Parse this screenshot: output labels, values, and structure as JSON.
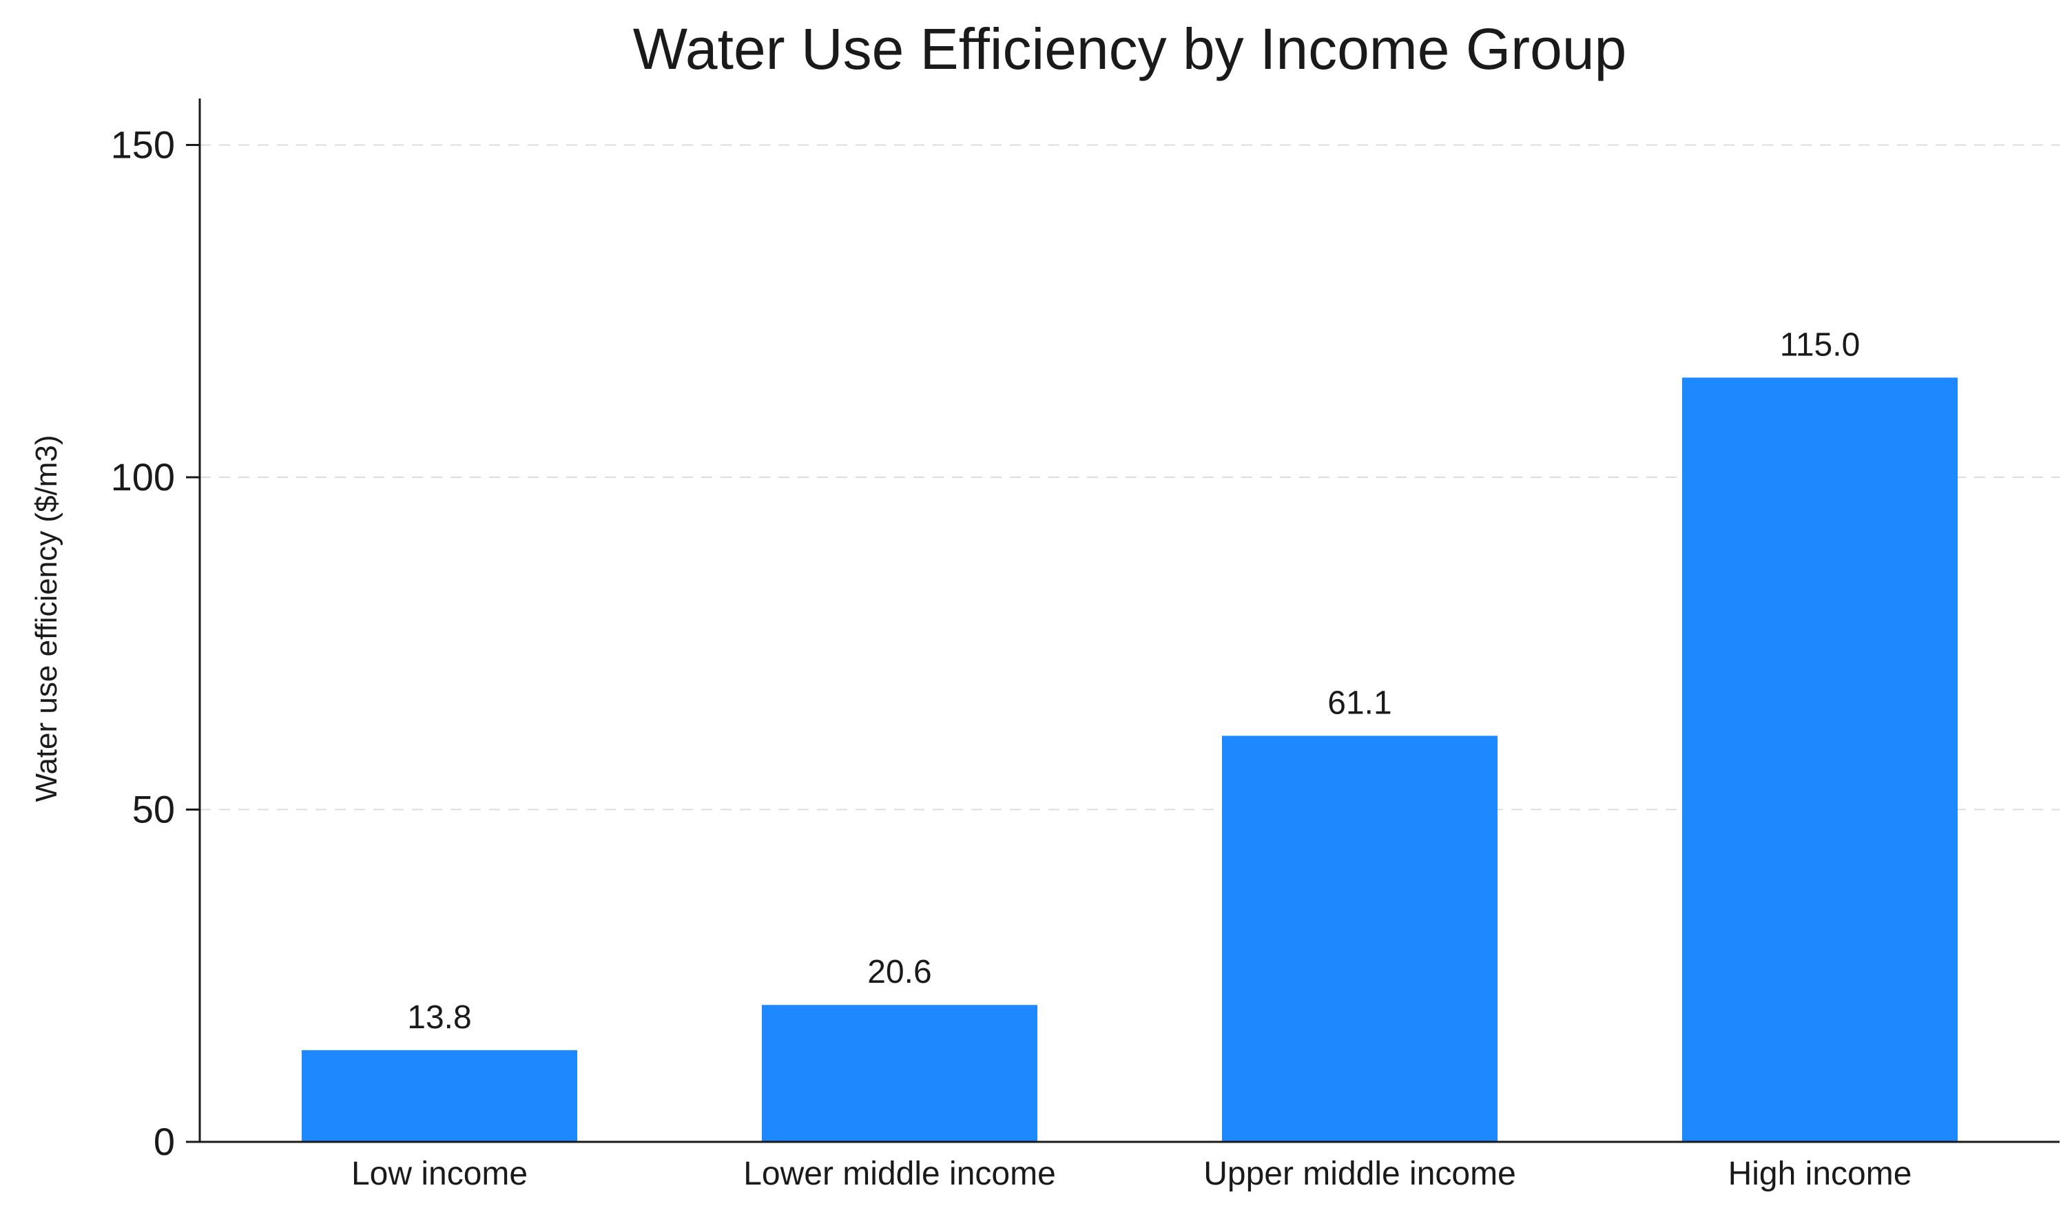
{
  "chart_data": {
    "type": "bar",
    "title": "Water Use Efficiency by Income Group",
    "xlabel": "",
    "ylabel": "Water use efficiency ($/m3)",
    "categories": [
      "Low income",
      "Lower middle income",
      "Upper middle income",
      "High income"
    ],
    "values": [
      13.8,
      20.6,
      61.1,
      115.0
    ],
    "value_labels": [
      "13.8",
      "20.6",
      "61.1",
      "115.0"
    ],
    "ylim": [
      0,
      157
    ],
    "yticks": [
      0,
      50,
      100,
      150
    ],
    "grid": true,
    "legend": "none",
    "bar_color": "#1e88ff"
  }
}
